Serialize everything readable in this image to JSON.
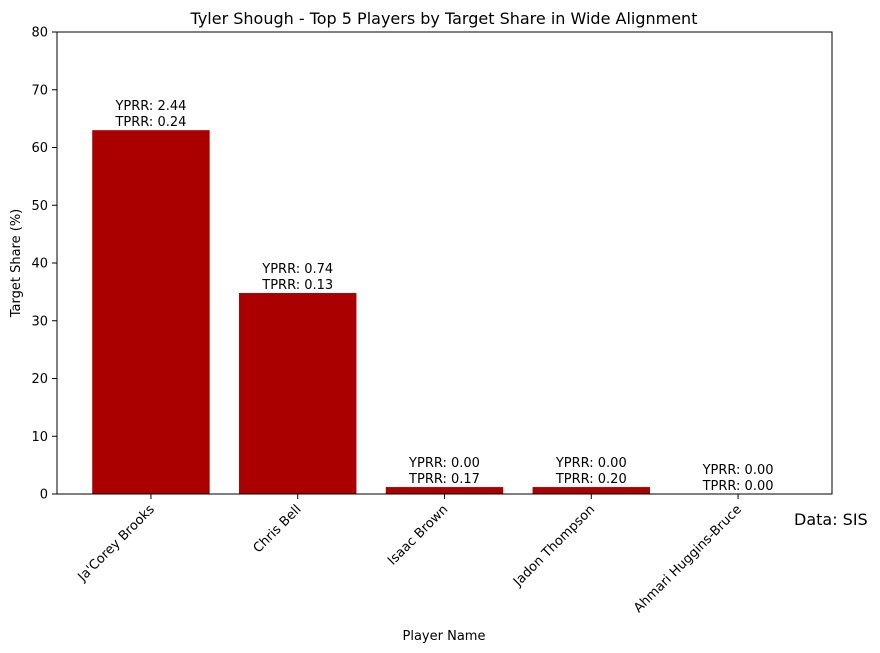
{
  "chart_data": {
    "type": "bar",
    "title": "Tyler Shough - Top 5 Players by Target Share in Wide Alignment",
    "xlabel": "Player Name",
    "ylabel": "Target Share (%)",
    "ylim": [
      0,
      80
    ],
    "yticks": [
      0,
      10,
      20,
      30,
      40,
      50,
      60,
      70,
      80
    ],
    "categories": [
      "Ja'Corey Brooks",
      "Chris Bell",
      "Isaac Brown",
      "Jadon Thompson",
      "Ahmari Huggins-Bruce"
    ],
    "values": [
      63.0,
      34.8,
      1.2,
      1.2,
      0.0
    ],
    "annotations": [
      [
        "YPRR: 2.44",
        "TPRR: 0.24"
      ],
      [
        "YPRR: 0.74",
        "TPRR: 0.13"
      ],
      [
        "YPRR: 0.00",
        "TPRR: 0.17"
      ],
      [
        "YPRR: 0.00",
        "TPRR: 0.20"
      ],
      [
        "YPRR: 0.00",
        "TPRR: 0.00"
      ]
    ],
    "bar_color": "#aa0000",
    "grid": false,
    "source_note": "Data: SIS"
  }
}
